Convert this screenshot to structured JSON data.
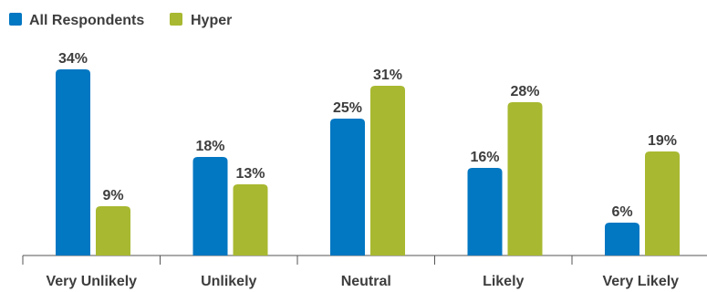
{
  "chart_data": {
    "type": "bar",
    "categories": [
      "Very Unlikely",
      "Unlikely",
      "Neutral",
      "Likely",
      "Very Likely"
    ],
    "series": [
      {
        "name": "All Respondents",
        "values": [
          34,
          18,
          25,
          16,
          6
        ],
        "color": "#0277c2",
        "labels": [
          "34%",
          "18%",
          "25%",
          "16%",
          "6%"
        ]
      },
      {
        "name": "Hyper",
        "values": [
          9,
          13,
          31,
          28,
          19
        ],
        "color": "#a8b830",
        "labels": [
          "9%",
          "13%",
          "31%",
          "28%",
          "19%"
        ]
      }
    ],
    "ylim": [
      0,
      34
    ],
    "grid": false,
    "legend": "top-left"
  }
}
